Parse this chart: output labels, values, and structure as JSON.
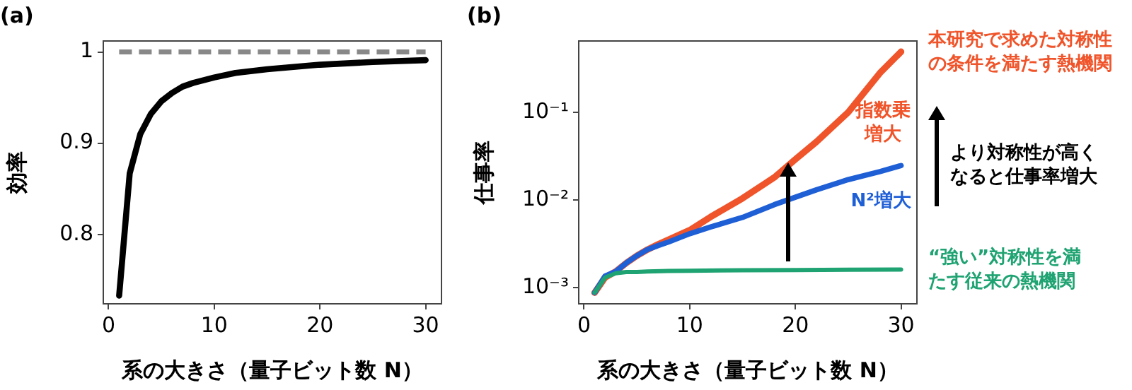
{
  "chart_data": [
    {
      "type": "line",
      "title": "(a)",
      "xlabel": "系の大きさ（量子ビット数 N）",
      "ylabel": "効率",
      "xlim": [
        -0.5,
        31.5
      ],
      "ylim": [
        0.724,
        1.012
      ],
      "xticks": [
        0,
        10,
        20,
        30
      ],
      "yticks": [
        0.8,
        0.9,
        1
      ],
      "grid": false,
      "legend": false,
      "marker": "none",
      "series": [
        {
          "color": "#000000",
          "x": [
            1,
            2,
            3,
            4,
            5,
            6,
            7,
            8,
            10,
            12,
            15,
            20,
            25,
            30
          ],
          "values": [
            0.733,
            0.867,
            0.91,
            0.932,
            0.946,
            0.955,
            0.962,
            0.966,
            0.972,
            0.977,
            0.981,
            0.986,
            0.989,
            0.991
          ]
        },
        {
          "color": "#888888",
          "line_style": "dashed",
          "x": [
            1,
            30
          ],
          "values": [
            1,
            1
          ]
        }
      ]
    },
    {
      "type": "line",
      "title": "(b)",
      "xlabel": "系の大きさ（量子ビット数 N）",
      "ylabel": "仕事率",
      "xlim": [
        -0.5,
        31.5
      ],
      "ylim": [
        0.00065,
        0.65
      ],
      "log": "y",
      "xticks": [
        0,
        10,
        20,
        30
      ],
      "yticks": [
        {
          "value": 0.001,
          "label": "10⁻³"
        },
        {
          "value": 0.01,
          "label": "10⁻²"
        },
        {
          "value": 0.1,
          "label": "10⁻¹"
        }
      ],
      "grid": false,
      "legend": false,
      "marker": "none",
      "annotations": [
        "指数乗増大",
        "N²増大",
        "より対称性が高くなると仕事率増大"
      ],
      "series": [
        {
          "name": "本研究で求めた対称性の条件を満たす熱機関",
          "color": "#f0542a",
          "x": [
            1,
            2,
            3,
            4,
            5,
            6,
            7,
            8,
            10,
            12,
            15,
            18,
            20,
            22,
            25,
            28,
            30
          ],
          "values": [
            0.00087,
            0.0013,
            0.00152,
            0.0019,
            0.0023,
            0.0027,
            0.0031,
            0.0035,
            0.0045,
            0.0064,
            0.0104,
            0.018,
            0.029,
            0.046,
            0.1,
            0.28,
            0.49
          ]
        },
        {
          "color": "#1f5fd6",
          "x": [
            1,
            2,
            3,
            4,
            5,
            6,
            7,
            8,
            10,
            12,
            15,
            18,
            20,
            22,
            25,
            28,
            30
          ],
          "values": [
            0.00087,
            0.00135,
            0.00152,
            0.0019,
            0.0023,
            0.0027,
            0.003,
            0.0033,
            0.0041,
            0.0049,
            0.0063,
            0.0088,
            0.0107,
            0.013,
            0.017,
            0.021,
            0.0246
          ]
        },
        {
          "name": "“強い”対称性を満たす従来の熱機関",
          "color": "#1fa372",
          "x": [
            1,
            2,
            3,
            4,
            5,
            6,
            8,
            10,
            15,
            20,
            25,
            30
          ],
          "values": [
            0.00087,
            0.0013,
            0.00145,
            0.0015,
            0.0015,
            0.00152,
            0.00154,
            0.00155,
            0.00157,
            0.00158,
            0.00159,
            0.0016
          ]
        }
      ]
    }
  ]
}
